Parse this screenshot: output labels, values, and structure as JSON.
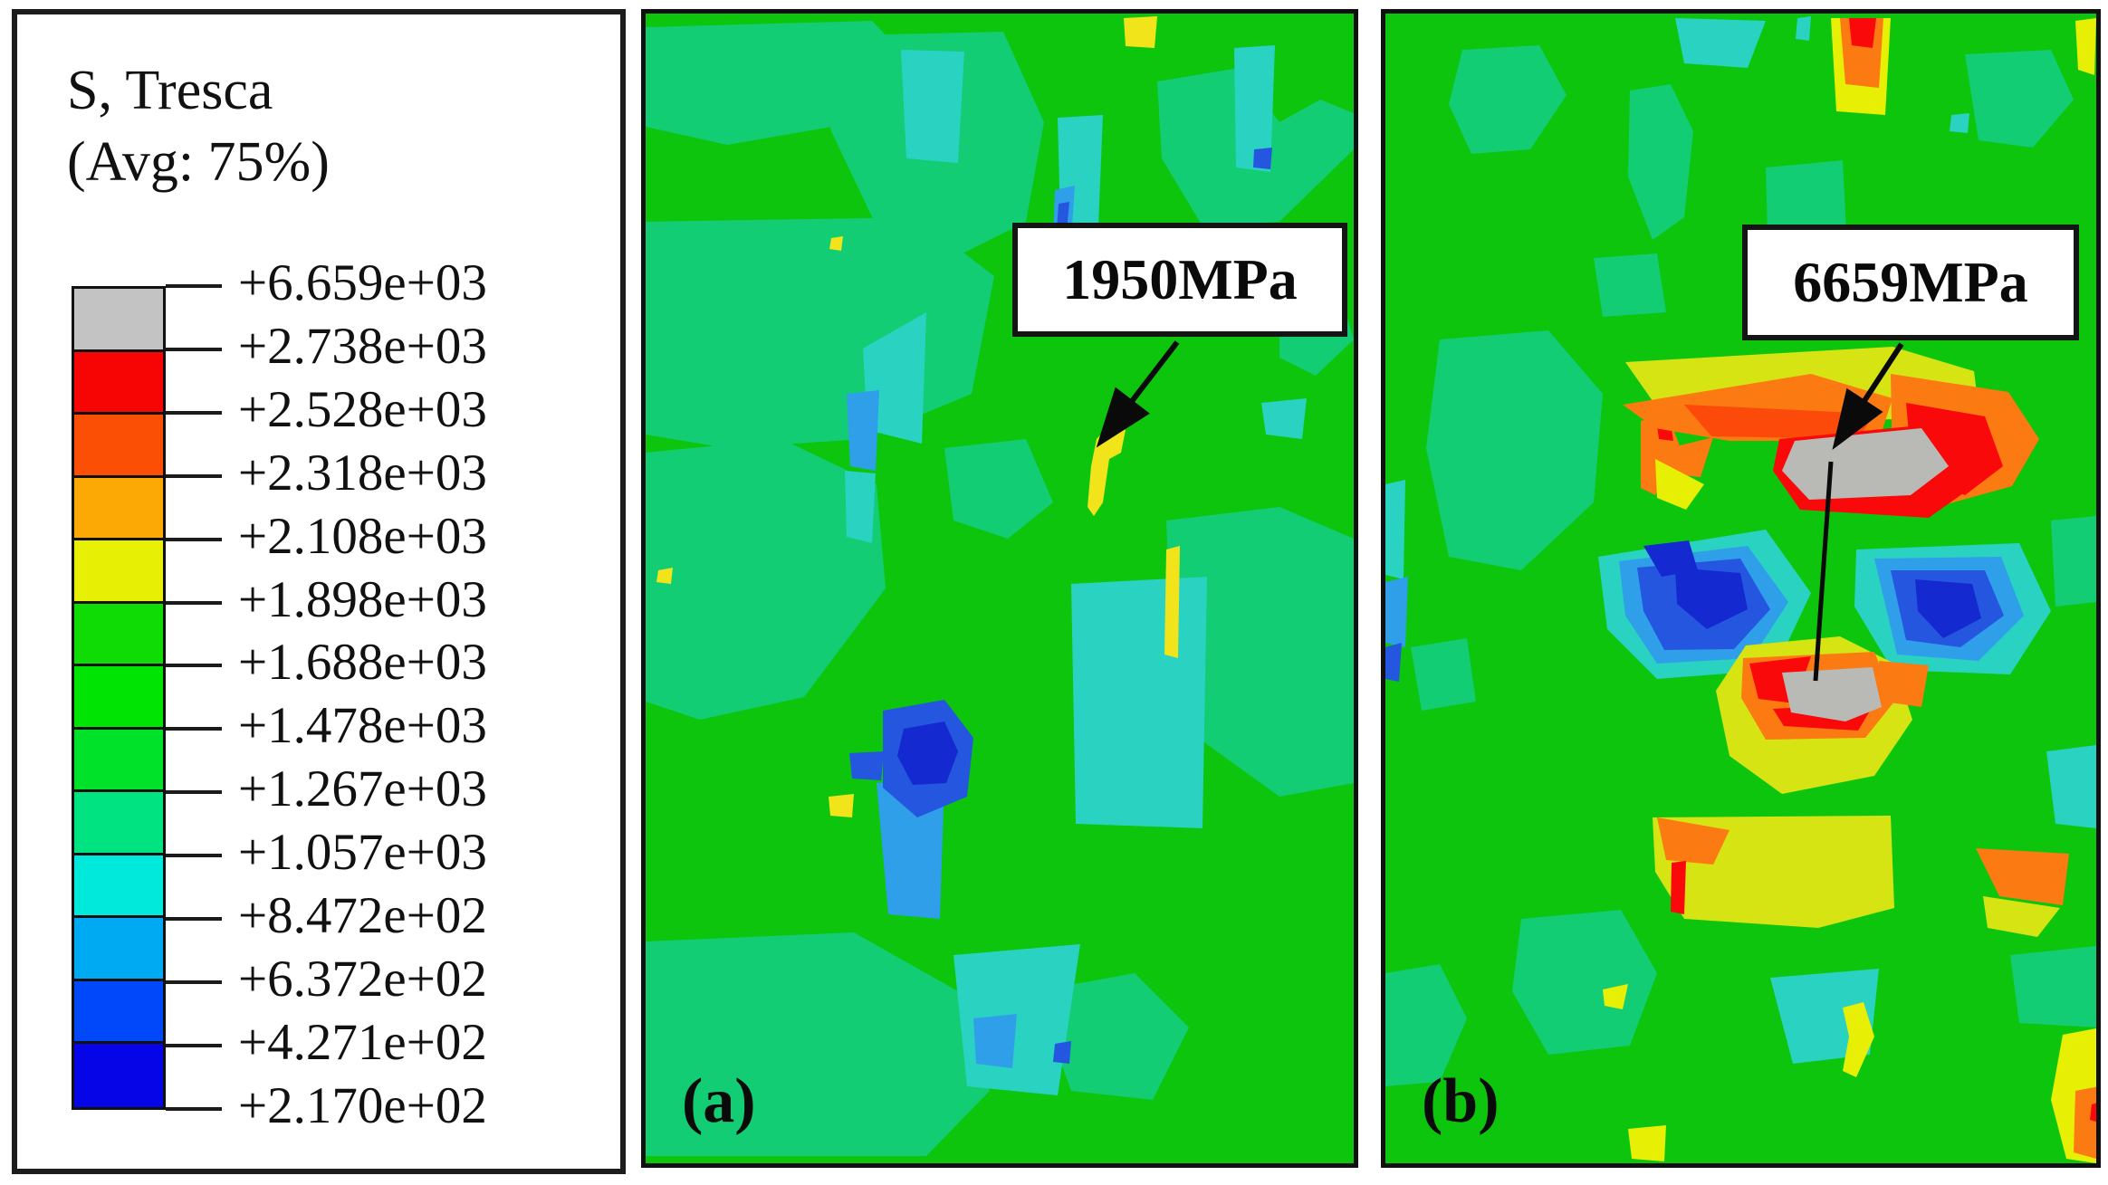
{
  "figure": {
    "legend": {
      "title": "S, Tresca",
      "subtitle": "(Avg: 75%)",
      "ticks": [
        "+6.659e+03",
        "+2.738e+03",
        "+2.528e+03",
        "+2.318e+03",
        "+2.108e+03",
        "+1.898e+03",
        "+1.688e+03",
        "+1.478e+03",
        "+1.267e+03",
        "+1.057e+03",
        "+8.472e+02",
        "+6.372e+02",
        "+4.271e+02",
        "+2.170e+02"
      ],
      "band_colors": [
        "#c3c3c3",
        "#f70404",
        "#fb4f06",
        "#fca805",
        "#e7ef05",
        "#0fdc04",
        "#00e404",
        "#00e22a",
        "#00e381",
        "#00e9da",
        "#00aaf2",
        "#0048fa",
        "#0505e8"
      ]
    },
    "panels": [
      {
        "id": "a",
        "label": "(a)",
        "annotation": "1950MPa"
      },
      {
        "id": "b",
        "label": "(b)",
        "annotation": "6659MPa"
      }
    ],
    "palette": {
      "background_green": "#0cc50c",
      "sea_green": "#12cd74",
      "cyan": "#2ad2c2",
      "light_blue": "#2f9fe9",
      "blue": "#2456e0",
      "dark_blue": "#1429cf",
      "yellow": "#f2e41a",
      "yellow_green": "#d6e414",
      "orange": "#fb7a12",
      "orange_red": "#fb4a0a",
      "red": "#f90909",
      "max_grey": "#b9bab6"
    }
  },
  "chart_data": {
    "type": "heatmap",
    "title": "S, Tresca (Avg: 75%) Tresca stress contour plots",
    "legend_title": "S, Tresca",
    "legend_subtitle": "(Avg: 75%)",
    "units": "MPa",
    "scale_tick_labels": [
      "+6.659e+03",
      "+2.738e+03",
      "+2.528e+03",
      "+2.318e+03",
      "+2.108e+03",
      "+1.898e+03",
      "+1.688e+03",
      "+1.478e+03",
      "+1.267e+03",
      "+1.057e+03",
      "+8.472e+02",
      "+6.372e+02",
      "+4.271e+02",
      "+2.170e+02"
    ],
    "scale_tick_values": [
      6659,
      2738,
      2528,
      2318,
      2108,
      1898,
      1688,
      1478,
      1267,
      1057,
      847.2,
      637.2,
      427.1,
      217.0
    ],
    "band_colors_top_to_bottom": [
      "#c3c3c3",
      "#f70404",
      "#fb4f06",
      "#fca805",
      "#e7ef05",
      "#0fdc04",
      "#00e404",
      "#00e22a",
      "#00e381",
      "#00e9da",
      "#00aaf2",
      "#0048fa",
      "#0505e8"
    ],
    "legend_position": "left",
    "panels": [
      {
        "label": "(a)",
        "annotation_text": "1950MPa",
        "peak_stress_MPa": 1950
      },
      {
        "label": "(b)",
        "annotation_text": "6659MPa",
        "peak_stress_MPa": 6659
      }
    ]
  }
}
